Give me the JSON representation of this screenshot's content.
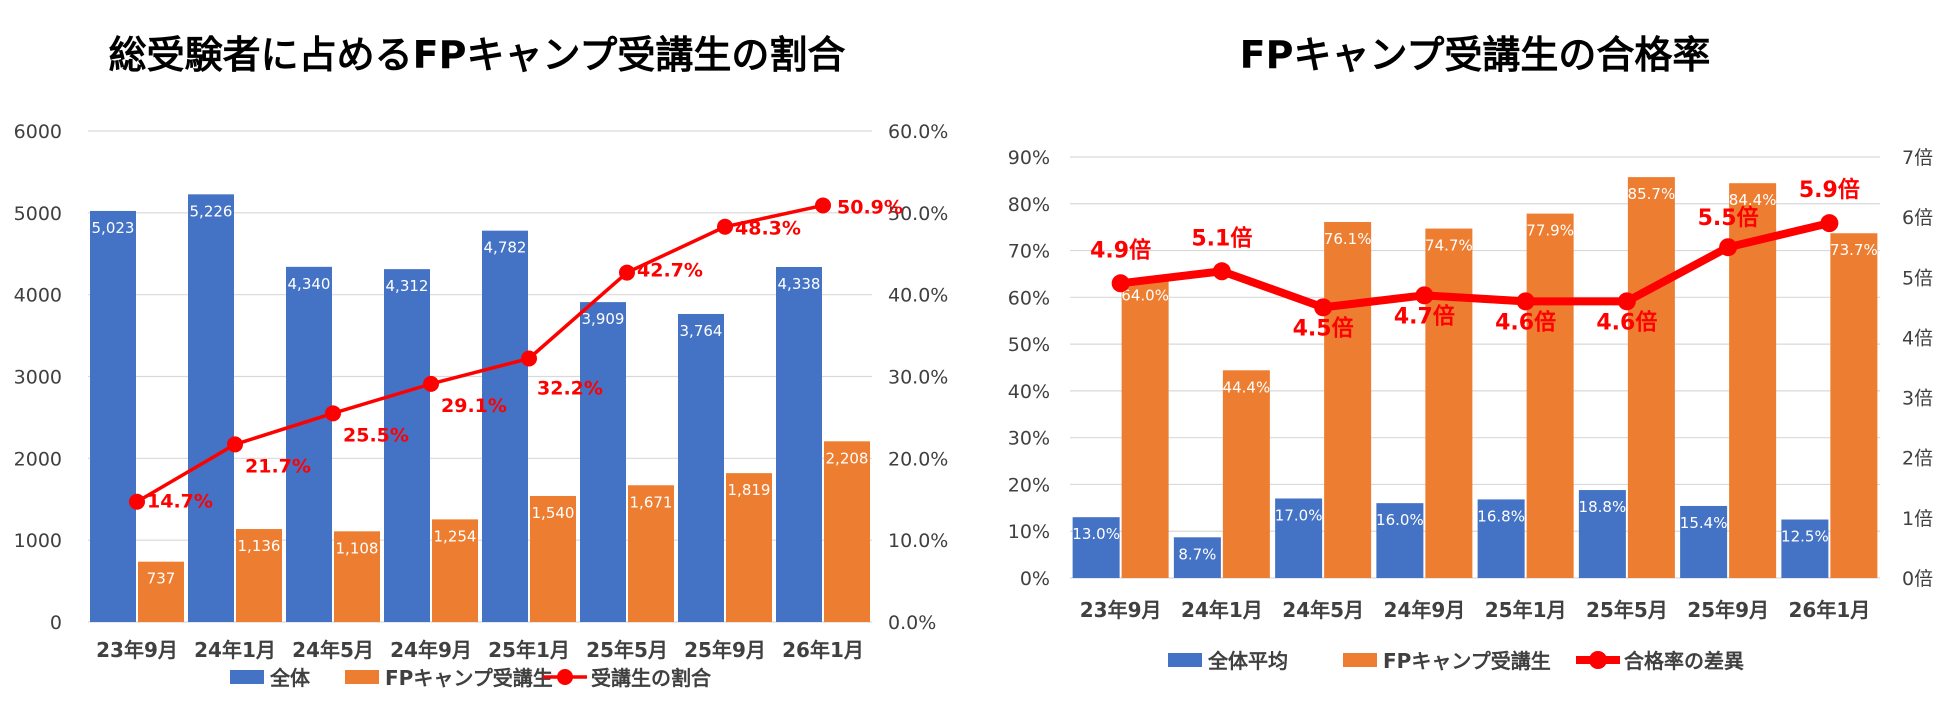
{
  "chart_data": [
    {
      "type": "bar",
      "title": "総受験者に占めるFPキャンプ受講生の割合",
      "categories": [
        "23年9月",
        "24年1月",
        "24年5月",
        "24年9月",
        "25年1月",
        "25年5月",
        "25年9月",
        "26年1月"
      ],
      "series": [
        {
          "name": "全体",
          "type": "bar",
          "axis": "left",
          "color": "#4472C4",
          "values": [
            5023,
            5226,
            4340,
            4312,
            4782,
            3909,
            3764,
            4338
          ],
          "labels": [
            "5,023",
            "5,226",
            "4,340",
            "4,312",
            "4,782",
            "3,909",
            "3,764",
            "4,338"
          ]
        },
        {
          "name": "FPキャンプ受講生",
          "type": "bar",
          "axis": "left",
          "color": "#ED7D31",
          "values": [
            737,
            1136,
            1108,
            1254,
            1540,
            1671,
            1819,
            2208
          ],
          "labels": [
            "737",
            "1,136",
            "1,108",
            "1,254",
            "1,540",
            "1,671",
            "1,819",
            "2,208"
          ]
        },
        {
          "name": "受講生の割合",
          "type": "line",
          "axis": "right",
          "color": "#FF0000",
          "values": [
            14.7,
            21.7,
            25.5,
            29.1,
            32.2,
            42.7,
            48.3,
            50.9
          ],
          "labels": [
            "14.7%",
            "21.7%",
            "25.5%",
            "29.1%",
            "32.2%",
            "42.7%",
            "48.3%",
            "50.9%"
          ]
        }
      ],
      "y_left": {
        "min": 0,
        "max": 6000,
        "ticks": [
          "0",
          "1000",
          "2000",
          "3000",
          "4000",
          "5000",
          "6000"
        ]
      },
      "y_right": {
        "min": 0,
        "max": 60,
        "ticks": [
          "0.0%",
          "10.0%",
          "20.0%",
          "30.0%",
          "40.0%",
          "50.0%",
          "60.0%"
        ]
      },
      "grid": true,
      "legend_position": "bottom"
    },
    {
      "type": "bar",
      "title": "FPキャンプ受講生の合格率",
      "categories": [
        "23年9月",
        "24年1月",
        "24年5月",
        "24年9月",
        "25年1月",
        "25年5月",
        "25年9月",
        "26年1月"
      ],
      "series": [
        {
          "name": "全体平均",
          "type": "bar",
          "axis": "left",
          "color": "#4472C4",
          "values": [
            13.0,
            8.7,
            17.0,
            16.0,
            16.8,
            18.8,
            15.4,
            12.5
          ],
          "labels": [
            "13.0%",
            "8.7%",
            "17.0%",
            "16.0%",
            "16.8%",
            "18.8%",
            "15.4%",
            "12.5%"
          ]
        },
        {
          "name": "FPキャンプ受講生",
          "type": "bar",
          "axis": "left",
          "color": "#ED7D31",
          "values": [
            64.0,
            44.4,
            76.1,
            74.7,
            77.9,
            85.7,
            84.4,
            73.7
          ],
          "labels": [
            "64.0%",
            "44.4%",
            "76.1%",
            "74.7%",
            "77.9%",
            "85.7%",
            "84.4%",
            "73.7%"
          ]
        },
        {
          "name": "合格率の差異",
          "type": "line",
          "axis": "right",
          "color": "#FF0000",
          "values": [
            4.9,
            5.1,
            4.5,
            4.7,
            4.6,
            4.6,
            5.5,
            5.9
          ],
          "labels": [
            "4.9倍",
            "5.1倍",
            "4.5倍",
            "4.7倍",
            "4.6倍",
            "4.6倍",
            "5.5倍",
            "5.9倍"
          ]
        }
      ],
      "y_left": {
        "min": 0,
        "max": 90,
        "ticks": [
          "0%",
          "10%",
          "20%",
          "30%",
          "40%",
          "50%",
          "60%",
          "70%",
          "80%",
          "90%"
        ]
      },
      "y_right": {
        "min": 0,
        "max": 7,
        "ticks": [
          "0倍",
          "1倍",
          "2倍",
          "3倍",
          "4倍",
          "5倍",
          "6倍",
          "7倍"
        ]
      },
      "grid": true,
      "legend_position": "bottom"
    }
  ]
}
